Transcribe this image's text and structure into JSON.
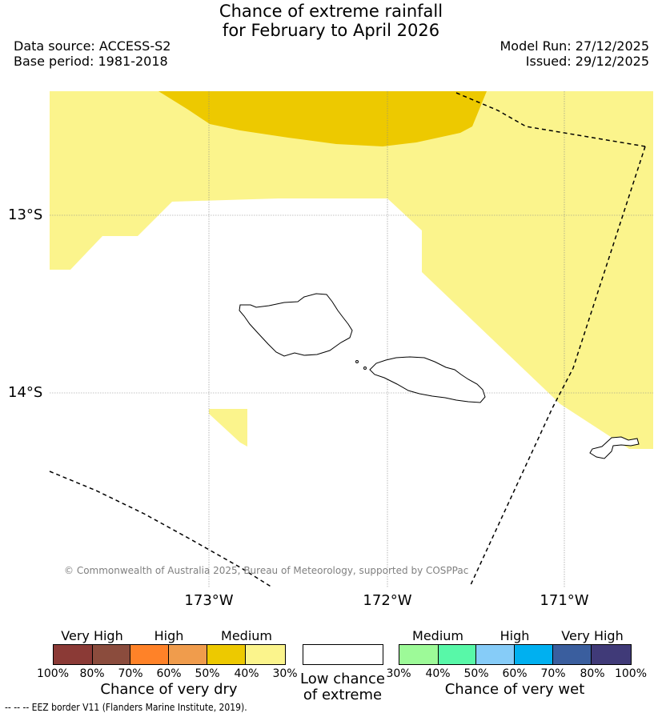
{
  "header": {
    "title_line1": "Chance of extreme rainfall",
    "title_line2": "for February to April 2026",
    "data_source": "Data source: ACCESS-S2",
    "base_period": "Base period: 1981-2018",
    "model_run": "Model Run: 27/12/2025",
    "issued": "Issued: 29/12/2025"
  },
  "map": {
    "latitude_labels": [
      "13°S",
      "14°S"
    ],
    "longitude_labels": [
      "173°W",
      "172°W",
      "171°W"
    ],
    "copyright": "© Commonwealth of Australia 2025, Bureau of Meteorology, supported by COSPPac",
    "colors": {
      "medium_dry": "#fbf48c",
      "medium_high_dry": "#edc900",
      "land_outline": "#000000",
      "eez": "#000000"
    }
  },
  "legend": {
    "dry": {
      "groups": [
        "Very High",
        "High",
        "Medium"
      ],
      "ticks": [
        "100%",
        "80%",
        "70%",
        "60%",
        "50%",
        "40%",
        "30%"
      ],
      "caption": "Chance of very dry",
      "colors": [
        "#8b3a36",
        "#8b4c3d",
        "#ff8228",
        "#f09c4c",
        "#edc900",
        "#fbf48c"
      ]
    },
    "low": {
      "caption_line1": "Low chance",
      "caption_line2": "of extreme",
      "color": "#ffffff"
    },
    "wet": {
      "groups": [
        "Medium",
        "High",
        "Very High"
      ],
      "ticks": [
        "30%",
        "40%",
        "50%",
        "60%",
        "70%",
        "80%",
        "100%"
      ],
      "caption": "Chance of very wet",
      "colors": [
        "#9dfa98",
        "#58f8a8",
        "#86ccf8",
        "#00b0f0",
        "#3a5e9e",
        "#403a78"
      ]
    }
  },
  "footnote": "--  --  -- EEZ border V11 (Flanders Marine Institute, 2019)."
}
